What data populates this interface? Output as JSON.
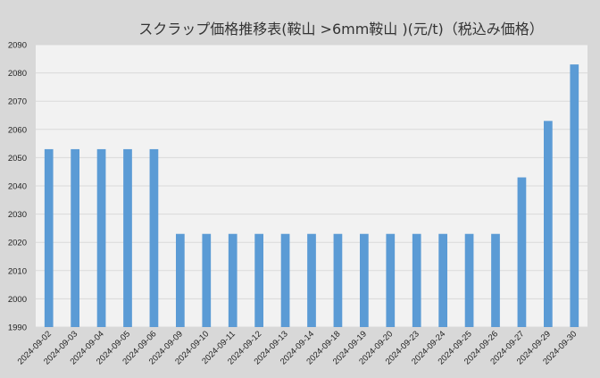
{
  "chart_data": {
    "type": "bar",
    "title": "スクラップ価格推移表(鞍山 >6mm鞍山 )(元/t)（税込み価格）",
    "xlabel": "",
    "ylabel": "",
    "ylim": [
      1990,
      2090
    ],
    "ytick_step": 10,
    "grid": true,
    "legend": "none",
    "categories": [
      "2024-09-02",
      "2024-09-03",
      "2024-09-04",
      "2024-09-05",
      "2024-09-06",
      "2024-09-09",
      "2024-09-10",
      "2024-09-11",
      "2024-09-12",
      "2024-09-13",
      "2024-09-14",
      "2024-09-18",
      "2024-09-19",
      "2024-09-20",
      "2024-09-23",
      "2024-09-24",
      "2024-09-25",
      "2024-09-26",
      "2024-09-27",
      "2024-09-29",
      "2024-09-30"
    ],
    "values": [
      2053,
      2053,
      2053,
      2053,
      2053,
      2023,
      2023,
      2023,
      2023,
      2023,
      2023,
      2023,
      2023,
      2023,
      2023,
      2023,
      2023,
      2023,
      2043,
      2063,
      2083
    ],
    "colors": {
      "bar": "#5b9bd5",
      "plot_background": "#f2f2f2",
      "page_background": "#d8d8d8",
      "grid": "#d9d9d9"
    }
  }
}
